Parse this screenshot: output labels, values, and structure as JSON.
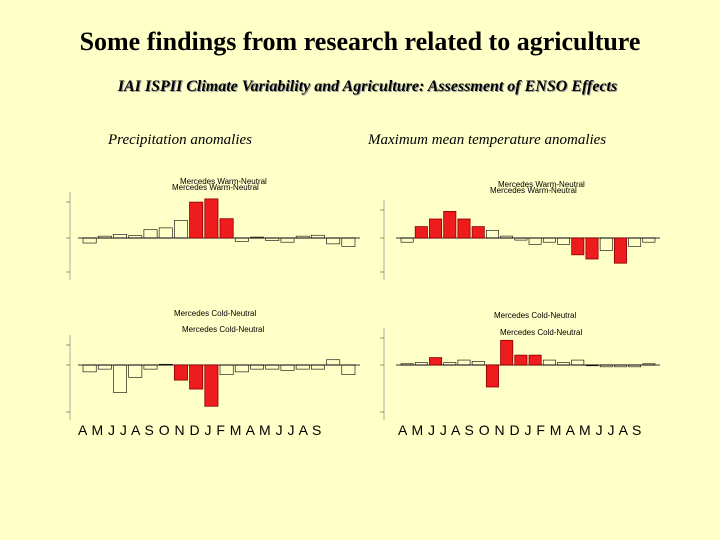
{
  "slide": {
    "title": "Some findings from research related to agriculture",
    "subtitle": "IAI ISPII Climate Variability and Agriculture: Assessment of ENSO Effects",
    "left_column_title": "Precipitation anomalies",
    "right_column_title": "Maximum mean temperature anomalies",
    "month_axis_left": "A M J J A S O N D J F M A M J J A S",
    "month_axis_right": "A M J J A S O N D J F M A M J J A S"
  },
  "colors": {
    "background": "#ffffc8",
    "highlight_bar": "#ee1c1c",
    "outline": "#000000",
    "baseline": "#5a5a5a"
  },
  "chart_data": [
    {
      "type": "bar",
      "title": "Mercedes Warm-Neutral",
      "panel": "precipitation",
      "categories": [
        "A",
        "M",
        "J",
        "J",
        "A",
        "S",
        "O",
        "N",
        "D",
        "J",
        "F",
        "M",
        "A",
        "M",
        "J",
        "J",
        "A",
        "S"
      ],
      "values": [
        -12,
        4,
        8,
        5,
        18,
        22,
        38,
        78,
        85,
        42,
        -8,
        2,
        -6,
        -10,
        4,
        6,
        -14,
        -20
      ],
      "highlighted": [
        false,
        false,
        false,
        false,
        false,
        false,
        false,
        true,
        true,
        true,
        false,
        false,
        false,
        false,
        false,
        false,
        false,
        false
      ],
      "ylim": [
        -50,
        100
      ]
    },
    {
      "type": "bar",
      "title": "Mercedes Warm-Neutral",
      "panel": "maximum temperature",
      "categories": [
        "A",
        "M",
        "J",
        "J",
        "A",
        "S",
        "O",
        "N",
        "D",
        "J",
        "F",
        "M",
        "A",
        "M",
        "J",
        "J",
        "A",
        "S"
      ],
      "values": [
        -0.2,
        0.6,
        1.0,
        1.4,
        1.0,
        0.6,
        0.4,
        0.1,
        -0.1,
        -0.3,
        -0.2,
        -0.3,
        -0.8,
        -1.0,
        -0.6,
        -1.2,
        -0.4,
        -0.2
      ],
      "highlighted": [
        false,
        true,
        true,
        true,
        true,
        true,
        false,
        false,
        false,
        false,
        false,
        false,
        true,
        true,
        false,
        true,
        false,
        false
      ],
      "ylim": [
        -2,
        2
      ]
    },
    {
      "type": "bar",
      "title": "Mercedes Cold-Neutral",
      "panel": "precipitation",
      "categories": [
        "A",
        "M",
        "J",
        "J",
        "A",
        "S",
        "O",
        "N",
        "D",
        "J",
        "F",
        "M",
        "A",
        "M",
        "J",
        "J",
        "A",
        "S"
      ],
      "values": [
        -10,
        -6,
        -40,
        -18,
        -6,
        2,
        -22,
        -35,
        -60,
        -14,
        -10,
        -6,
        -6,
        -8,
        -6,
        -6,
        14,
        -14
      ],
      "highlighted": [
        false,
        false,
        false,
        false,
        false,
        false,
        true,
        true,
        true,
        false,
        false,
        false,
        false,
        false,
        false,
        false,
        false,
        false
      ],
      "ylim": [
        -80,
        80
      ]
    },
    {
      "type": "bar",
      "title": "Mercedes Cold-Neutral",
      "panel": "maximum temperature",
      "categories": [
        "A",
        "M",
        "J",
        "J",
        "A",
        "S",
        "O",
        "N",
        "D",
        "J",
        "F",
        "M",
        "A",
        "M",
        "J",
        "J",
        "A",
        "S"
      ],
      "values": [
        0.1,
        0.2,
        0.6,
        0.2,
        0.4,
        0.3,
        -1.2,
        2.0,
        0.8,
        0.8,
        0.4,
        0.2,
        0.4,
        0.0,
        -0.1,
        -0.1,
        -0.1,
        0.1
      ],
      "highlighted": [
        false,
        false,
        true,
        false,
        false,
        false,
        true,
        true,
        true,
        true,
        false,
        false,
        false,
        false,
        false,
        false,
        false,
        false
      ],
      "ylim": [
        -3,
        3
      ]
    }
  ]
}
